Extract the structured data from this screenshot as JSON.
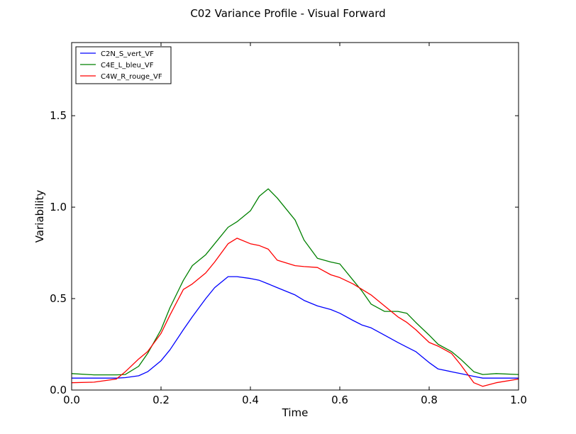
{
  "chart_data": {
    "type": "line",
    "title": "C02 Variance Profile - Visual Forward",
    "xlabel": "Time",
    "ylabel": "Variability",
    "xlim": [
      0.0,
      1.0
    ],
    "ylim": [
      0.0,
      1.9
    ],
    "xticks": [
      "0.0",
      "0.2",
      "0.4",
      "0.6",
      "0.8",
      "1.0"
    ],
    "yticks": [
      "0.0",
      "0.5",
      "1.0",
      "1.5"
    ],
    "xtick_values": [
      0.0,
      0.2,
      0.4,
      0.6,
      0.8,
      1.0
    ],
    "ytick_values": [
      0.0,
      0.5,
      1.0,
      1.5
    ],
    "grid": false,
    "legend_position": "top-left",
    "x": [
      0.0,
      0.05,
      0.1,
      0.12,
      0.15,
      0.17,
      0.2,
      0.22,
      0.25,
      0.27,
      0.3,
      0.32,
      0.35,
      0.37,
      0.4,
      0.42,
      0.44,
      0.46,
      0.5,
      0.52,
      0.55,
      0.58,
      0.6,
      0.63,
      0.65,
      0.67,
      0.7,
      0.73,
      0.75,
      0.77,
      0.8,
      0.82,
      0.85,
      0.87,
      0.9,
      0.92,
      0.95,
      1.0
    ],
    "series": [
      {
        "name": "C2N_S_vert_VF",
        "color": "#0000ff",
        "values": [
          0.065,
          0.065,
          0.065,
          0.068,
          0.078,
          0.1,
          0.16,
          0.22,
          0.33,
          0.4,
          0.5,
          0.56,
          0.62,
          0.62,
          0.61,
          0.6,
          0.58,
          0.56,
          0.52,
          0.49,
          0.46,
          0.44,
          0.42,
          0.38,
          0.355,
          0.34,
          0.3,
          0.26,
          0.235,
          0.21,
          0.15,
          0.115,
          0.1,
          0.09,
          0.075,
          0.065,
          0.065,
          0.065
        ]
      },
      {
        "name": "C4E_L_bleu_VF",
        "color": "#008000",
        "values": [
          0.09,
          0.083,
          0.083,
          0.085,
          0.13,
          0.2,
          0.33,
          0.45,
          0.6,
          0.68,
          0.74,
          0.8,
          0.89,
          0.92,
          0.98,
          1.06,
          1.1,
          1.05,
          0.93,
          0.82,
          0.72,
          0.7,
          0.69,
          0.6,
          0.54,
          0.47,
          0.43,
          0.43,
          0.42,
          0.37,
          0.3,
          0.25,
          0.21,
          0.17,
          0.1,
          0.085,
          0.09,
          0.085
        ]
      },
      {
        "name": "C4W_R_rouge_VF",
        "color": "#ff0000",
        "values": [
          0.04,
          0.043,
          0.06,
          0.1,
          0.17,
          0.21,
          0.31,
          0.41,
          0.55,
          0.58,
          0.64,
          0.7,
          0.8,
          0.83,
          0.8,
          0.79,
          0.77,
          0.71,
          0.68,
          0.675,
          0.67,
          0.63,
          0.615,
          0.58,
          0.55,
          0.52,
          0.46,
          0.4,
          0.37,
          0.33,
          0.26,
          0.24,
          0.2,
          0.14,
          0.04,
          0.02,
          0.04,
          0.06
        ]
      }
    ]
  }
}
